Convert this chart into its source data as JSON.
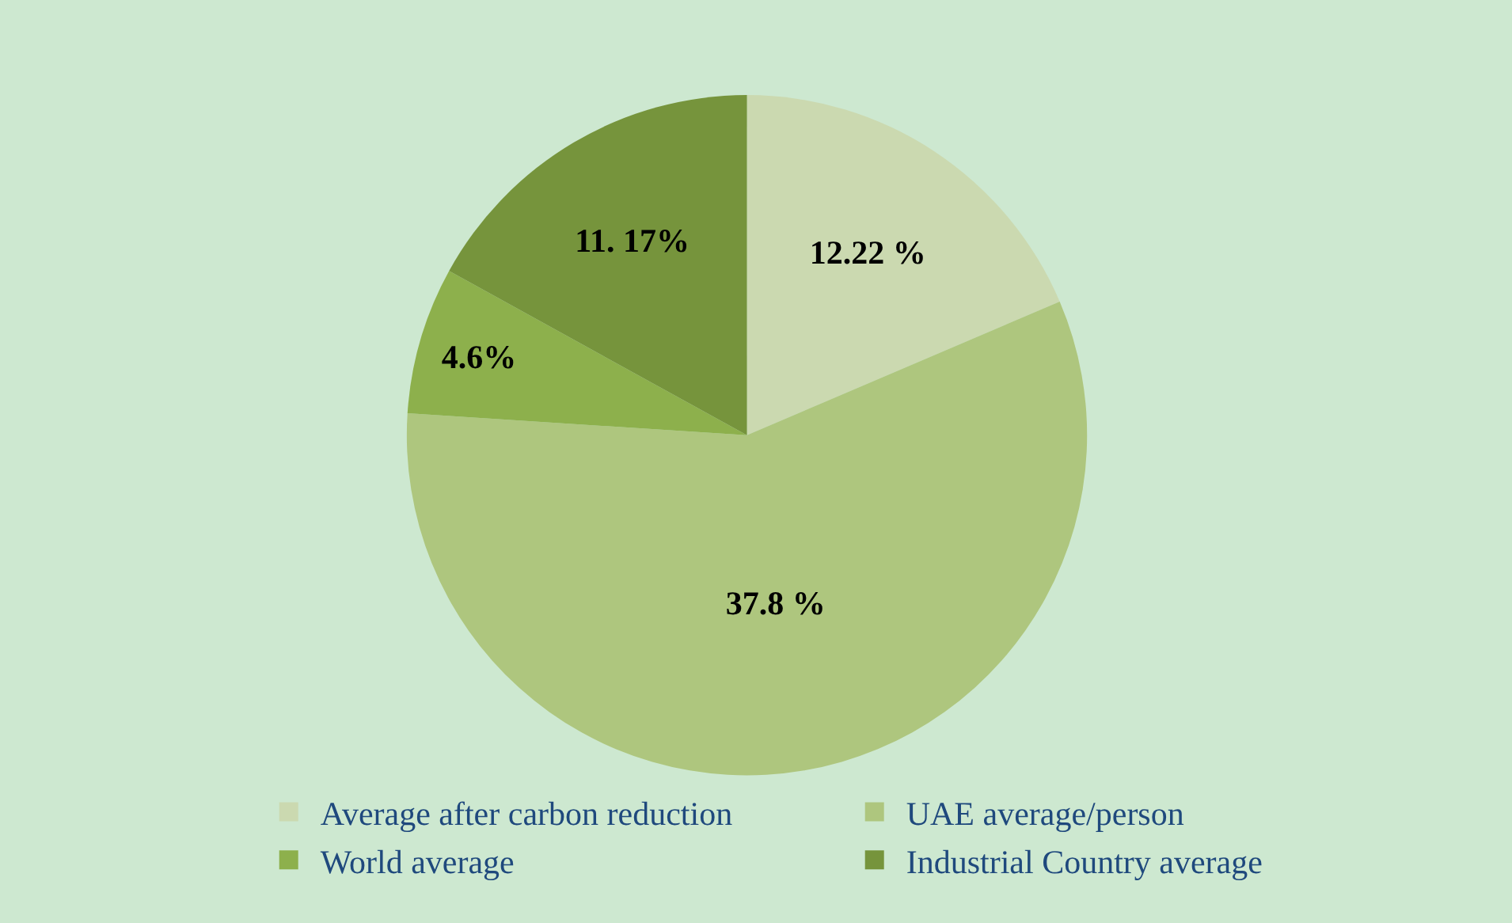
{
  "chart_data": {
    "type": "pie",
    "categories": [
      "Average after carbon reduction",
      "UAE average/person",
      "World average",
      "Industrial Country average"
    ],
    "values": [
      12.22,
      37.8,
      4.6,
      11.17
    ],
    "value_labels": [
      "12.22 %",
      "37.8 %",
      "4.6%",
      "11. 17%"
    ],
    "colors": [
      "#cbd9b0",
      "#aec67e",
      "#8db04c",
      "#76943c"
    ],
    "legend": "bottom"
  }
}
